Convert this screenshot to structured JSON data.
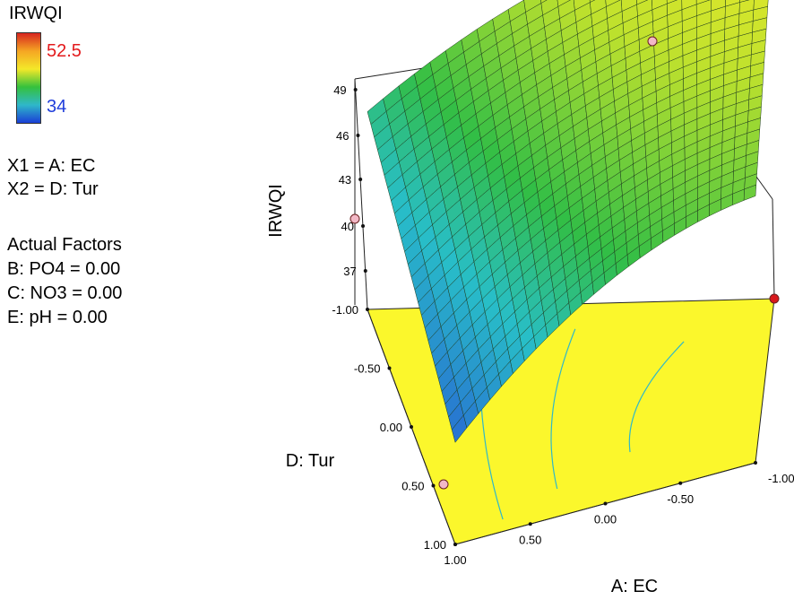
{
  "legend": {
    "title": "IRWQI",
    "max_label": "52.5",
    "min_label": "34",
    "colors": [
      "#d7261f",
      "#f5a623",
      "#f4e829",
      "#35c13c",
      "#2fb8c9",
      "#1a3fd6"
    ],
    "max_color": "#e31a1c",
    "min_color": "#1f3ddb"
  },
  "factors": {
    "x1": "X1 = A: EC",
    "x2": "X2 = D: Tur",
    "heading": "Actual Factors",
    "b": "B: PO4 = 0.00",
    "c": "C: NO3 = 0.00",
    "e": "E: pH = 0.00"
  },
  "chart_data": {
    "type": "surface",
    "title": "",
    "zlabel": "IRWQI",
    "xlabel": "A: EC",
    "ylabel": "D: Tur",
    "x_ticks": [
      "1.00",
      "0.50",
      "0.00",
      "-0.50",
      "-1.00"
    ],
    "y_ticks": [
      "-1.00",
      "-0.50",
      "0.00",
      "0.50",
      "1.00"
    ],
    "z_ticks": [
      "37",
      "40",
      "43",
      "46",
      "49"
    ],
    "x_range": [
      -1,
      1
    ],
    "y_range": [
      -1,
      1
    ],
    "z_range": [
      34,
      52.5
    ],
    "surface_corners": [
      {
        "A": -1,
        "D": -1,
        "IRWQI": 52.5
      },
      {
        "A": 1,
        "D": -1,
        "IRWQI": 40.1
      },
      {
        "A": -1,
        "D": 1,
        "IRWQI": 44.5
      },
      {
        "A": 1,
        "D": 1,
        "IRWQI": 34
      }
    ],
    "design_points": [
      {
        "A": -1,
        "D": -1,
        "IRWQI": 52.5,
        "color": "#f2b8c6"
      },
      {
        "A": 1,
        "D": -1,
        "IRWQI": 40.1,
        "color": "#f2b8c6"
      },
      {
        "A": 1,
        "D": 1,
        "IRWQI": 34,
        "color": "#f2b8c6"
      },
      {
        "A": -1,
        "D": 1,
        "IRWQI": 44.5,
        "color": "#d8181c"
      }
    ],
    "floor_color": "#fbf72c",
    "grid": true
  }
}
